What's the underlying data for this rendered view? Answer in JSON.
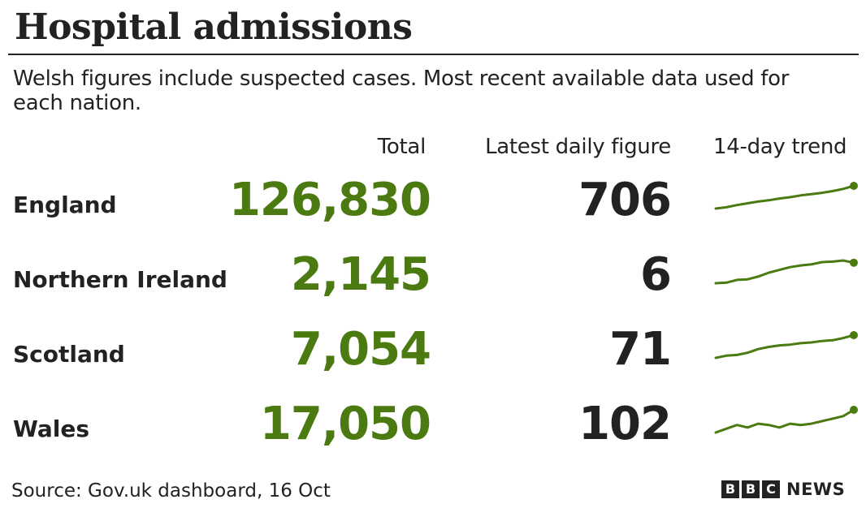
{
  "title": "Hospital admissions",
  "subtitle": "Welsh figures include suspected cases. Most recent available data used for each nation.",
  "columns": {
    "total": "Total",
    "daily": "Latest daily figure",
    "trend": "14-day trend"
  },
  "source": "Source: Gov.uk dashboard, 16 Oct",
  "brand": {
    "letters": [
      "B",
      "B",
      "C"
    ],
    "news": "NEWS"
  },
  "colors": {
    "total": "#4a7a10",
    "trend_line": "#4a7a10",
    "text": "#222222"
  },
  "chart_data": {
    "type": "table",
    "title": "Hospital admissions",
    "columns": [
      "Total",
      "Latest daily figure",
      "14-day trend"
    ],
    "rows": [
      {
        "name": "England",
        "total": "126,830",
        "daily": "706",
        "trend": [
          100,
          103,
          108,
          112,
          116,
          119,
          123,
          126,
          130,
          133,
          136,
          140,
          145,
          152
        ]
      },
      {
        "name": "Northern Ireland",
        "total": "2,145",
        "daily": "6",
        "trend": [
          60,
          61,
          66,
          67,
          72,
          79,
          84,
          89,
          92,
          94,
          98,
          99,
          101,
          97
        ]
      },
      {
        "name": "Scotland",
        "total": "7,054",
        "daily": "71",
        "trend": [
          100,
          103,
          104,
          107,
          112,
          115,
          117,
          118,
          120,
          121,
          123,
          124,
          127,
          131
        ]
      },
      {
        "name": "Wales",
        "total": "17,050",
        "daily": "102",
        "trend": [
          100,
          103,
          106,
          104,
          107,
          106,
          104,
          107,
          106,
          107,
          109,
          111,
          113,
          118
        ]
      }
    ]
  }
}
